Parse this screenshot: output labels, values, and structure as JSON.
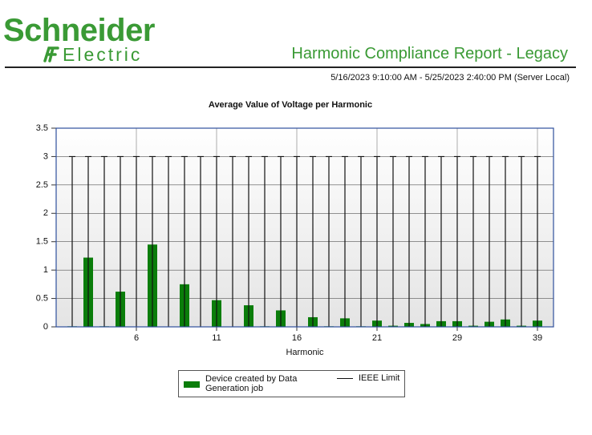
{
  "header": {
    "logo_top": "Schneider",
    "logo_bottom": "Electric",
    "title": "Harmonic Compliance Report - Legacy",
    "date_range": "5/16/2023 9:10:00 AM - 5/25/2023 2:40:00 PM (Server Local)"
  },
  "chart_data": {
    "type": "bar",
    "title": "Average Value of Voltage per Harmonic",
    "x_label": "Harmonic",
    "categories": [
      null,
      null,
      null,
      null,
      6,
      null,
      null,
      null,
      null,
      11,
      null,
      null,
      null,
      null,
      16,
      null,
      null,
      null,
      null,
      21,
      null,
      null,
      null,
      null,
      29,
      null,
      null,
      null,
      null,
      39
    ],
    "series": [
      {
        "name": "Device created by Data Generation job",
        "color": "#0a7d0a",
        "style": "bar",
        "values": [
          0.01,
          1.22,
          0.01,
          0.62,
          0,
          1.45,
          0,
          0.75,
          0,
          0.47,
          0,
          0.38,
          0.01,
          0.29,
          0,
          0.17,
          0.01,
          0.15,
          0.01,
          0.11,
          0.02,
          0.07,
          0.05,
          0.1,
          0.1,
          0.02,
          0.09,
          0.13,
          0.02,
          0.11
        ]
      },
      {
        "name": "IEEE Limit",
        "color": "#111111",
        "style": "limit",
        "values": [
          3,
          3,
          3,
          3,
          3,
          3,
          3,
          3,
          3,
          3,
          3,
          3,
          3,
          3,
          3,
          3,
          3,
          3,
          3,
          3,
          3,
          3,
          3,
          3,
          3,
          3,
          3,
          3,
          3,
          3
        ]
      }
    ],
    "ylim": [
      0,
      3.5
    ],
    "yticks": [
      0,
      0.5,
      1,
      1.5,
      2,
      2.5,
      3,
      3.5
    ],
    "grid": true,
    "legend": "bottom"
  }
}
